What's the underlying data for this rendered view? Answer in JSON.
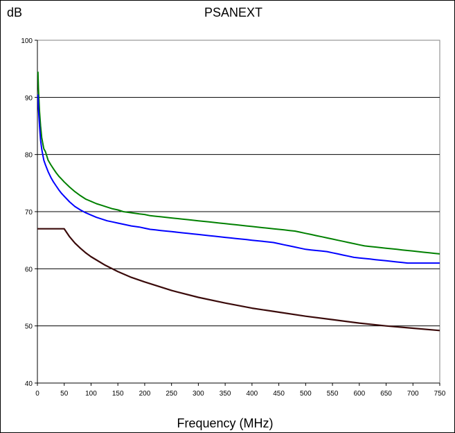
{
  "chart_data": {
    "type": "line",
    "title": "PSANEXT",
    "ylabel": "dB",
    "xlabel": "Frequency (MHz)",
    "xlim": [
      0,
      750
    ],
    "ylim": [
      40,
      100
    ],
    "xticks": [
      0,
      50,
      100,
      150,
      200,
      250,
      300,
      350,
      400,
      450,
      500,
      550,
      600,
      650,
      700,
      750
    ],
    "yticks": [
      40,
      50,
      60,
      70,
      80,
      90,
      100
    ],
    "grid": "horizontal",
    "legend": "none",
    "series": [
      {
        "color": "#008000",
        "x": [
          1,
          2,
          4,
          6,
          8,
          10,
          12,
          15,
          20,
          25,
          30,
          35,
          40,
          45,
          50,
          60,
          70,
          80,
          90,
          100,
          110,
          120,
          130,
          140,
          150,
          160,
          175,
          190,
          200,
          210,
          220,
          230,
          240,
          250,
          260,
          270,
          280,
          290,
          300,
          310,
          320,
          330,
          340,
          350,
          360,
          370,
          380,
          390,
          400,
          410,
          420,
          430,
          440,
          450,
          460,
          470,
          480,
          490,
          500,
          510,
          520,
          530,
          540,
          550,
          560,
          570,
          580,
          590,
          600,
          610,
          620,
          630,
          640,
          650,
          660,
          670,
          680,
          690,
          700,
          710,
          720,
          730,
          740,
          750
        ],
        "y": [
          94.5,
          91.5,
          87.5,
          85,
          83,
          82,
          81,
          80.5,
          79,
          78.2,
          77.5,
          76.8,
          76.2,
          75.7,
          75.2,
          74.3,
          73.5,
          72.8,
          72.2,
          71.8,
          71.4,
          71.1,
          70.8,
          70.5,
          70.3,
          70.0,
          69.8,
          69.6,
          69.5,
          69.3,
          69.2,
          69.1,
          69.0,
          68.9,
          68.8,
          68.7,
          68.6,
          68.5,
          68.4,
          68.3,
          68.2,
          68.1,
          68.0,
          67.9,
          67.8,
          67.7,
          67.6,
          67.5,
          67.4,
          67.3,
          67.2,
          67.1,
          67.0,
          66.9,
          66.8,
          66.7,
          66.6,
          66.4,
          66.2,
          66.0,
          65.8,
          65.6,
          65.4,
          65.2,
          65.0,
          64.8,
          64.6,
          64.4,
          64.2,
          64.0,
          63.9,
          63.8,
          63.7,
          63.6,
          63.5,
          63.4,
          63.3,
          63.2,
          63.1,
          63.0,
          62.9,
          62.8,
          62.7,
          62.6
        ]
      },
      {
        "color": "#0000ff",
        "x": [
          1,
          2,
          4,
          6,
          8,
          10,
          12,
          15,
          20,
          25,
          30,
          35,
          40,
          45,
          50,
          60,
          70,
          80,
          90,
          100,
          110,
          120,
          130,
          140,
          150,
          160,
          175,
          190,
          200,
          210,
          220,
          230,
          240,
          250,
          260,
          270,
          280,
          290,
          300,
          310,
          320,
          330,
          340,
          350,
          360,
          370,
          380,
          390,
          400,
          410,
          420,
          430,
          440,
          450,
          460,
          470,
          480,
          490,
          500,
          510,
          520,
          530,
          540,
          550,
          560,
          570,
          580,
          590,
          600,
          610,
          620,
          630,
          640,
          650,
          660,
          670,
          680,
          690,
          700,
          710,
          720,
          730,
          740,
          750
        ],
        "y": [
          90.5,
          88,
          85,
          82.5,
          81,
          80,
          79,
          78.2,
          77,
          76,
          75.2,
          74.5,
          73.8,
          73.2,
          72.7,
          71.7,
          70.9,
          70.3,
          69.8,
          69.4,
          69.0,
          68.7,
          68.4,
          68.2,
          68.0,
          67.8,
          67.5,
          67.3,
          67.1,
          66.9,
          66.8,
          66.7,
          66.6,
          66.5,
          66.4,
          66.3,
          66.2,
          66.1,
          66.0,
          65.9,
          65.8,
          65.7,
          65.6,
          65.5,
          65.4,
          65.3,
          65.2,
          65.1,
          65.0,
          64.9,
          64.8,
          64.7,
          64.6,
          64.4,
          64.2,
          64.0,
          63.8,
          63.6,
          63.4,
          63.3,
          63.2,
          63.1,
          63.0,
          62.8,
          62.6,
          62.4,
          62.2,
          62.0,
          61.9,
          61.8,
          61.7,
          61.6,
          61.5,
          61.4,
          61.3,
          61.2,
          61.1,
          61.0,
          61.0,
          61.0,
          61.0,
          61.0,
          61.0,
          61.0
        ]
      },
      {
        "color": "#3a0a0a",
        "x": [
          0,
          50,
          60,
          70,
          80,
          90,
          100,
          125,
          150,
          175,
          200,
          250,
          300,
          350,
          400,
          450,
          500,
          550,
          600,
          650,
          700,
          750
        ],
        "y": [
          67,
          67,
          65.6,
          64.5,
          63.6,
          62.8,
          62.1,
          60.7,
          59.5,
          58.5,
          57.7,
          56.2,
          55.0,
          54.0,
          53.1,
          52.4,
          51.7,
          51.1,
          50.5,
          50.0,
          49.6,
          49.2
        ]
      }
    ]
  }
}
